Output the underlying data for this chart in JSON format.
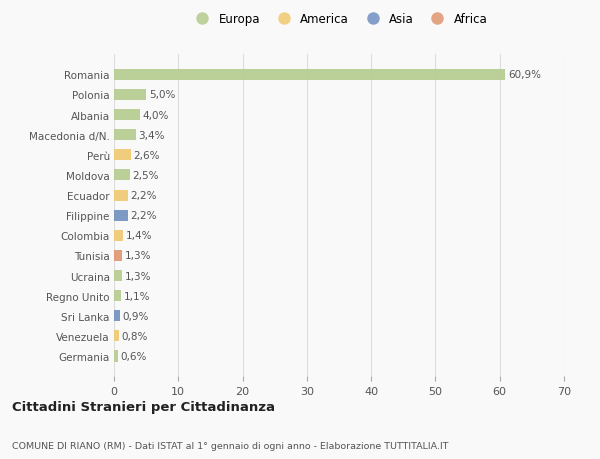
{
  "categories": [
    "Romania",
    "Polonia",
    "Albania",
    "Macedonia d/N.",
    "Perù",
    "Moldova",
    "Ecuador",
    "Filippine",
    "Colombia",
    "Tunisia",
    "Ucraina",
    "Regno Unito",
    "Sri Lanka",
    "Venezuela",
    "Germania"
  ],
  "values": [
    60.9,
    5.0,
    4.0,
    3.4,
    2.6,
    2.5,
    2.2,
    2.2,
    1.4,
    1.3,
    1.3,
    1.1,
    0.9,
    0.8,
    0.6
  ],
  "labels": [
    "60,9%",
    "5,0%",
    "4,0%",
    "3,4%",
    "2,6%",
    "2,5%",
    "2,2%",
    "2,2%",
    "1,4%",
    "1,3%",
    "1,3%",
    "1,1%",
    "0,9%",
    "0,8%",
    "0,6%"
  ],
  "continents": [
    "Europa",
    "Europa",
    "Europa",
    "Europa",
    "America",
    "Europa",
    "America",
    "Asia",
    "America",
    "Africa",
    "Europa",
    "Europa",
    "Asia",
    "America",
    "Europa"
  ],
  "continent_colors": {
    "Europa": "#b5cc8e",
    "America": "#f0c96e",
    "Asia": "#7090c0",
    "Africa": "#e0956e"
  },
  "legend_order": [
    "Europa",
    "America",
    "Asia",
    "Africa"
  ],
  "xlim": [
    0,
    70
  ],
  "xticks": [
    0,
    10,
    20,
    30,
    40,
    50,
    60,
    70
  ],
  "title1": "Cittadini Stranieri per Cittadinanza",
  "title2": "COMUNE DI RIANO (RM) - Dati ISTAT al 1° gennaio di ogni anno - Elaborazione TUTTITALIA.IT",
  "background_color": "#f9f9f9",
  "grid_color": "#dddddd"
}
